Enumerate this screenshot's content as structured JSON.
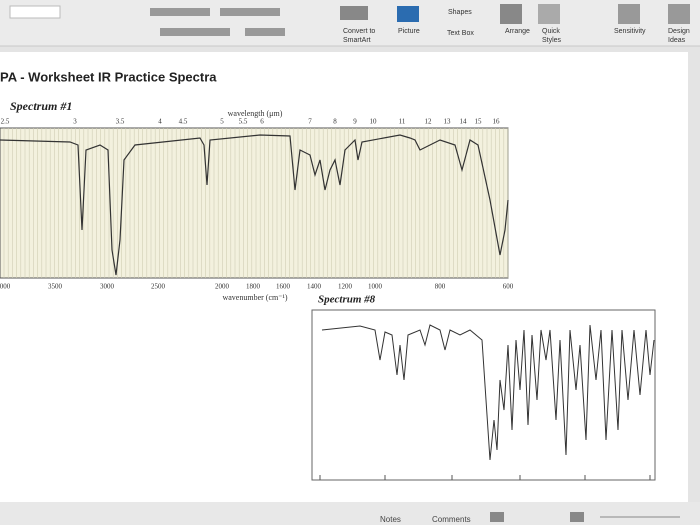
{
  "ribbon": {
    "items": [
      "Shapes",
      "Convert to",
      "SmartArt",
      "Picture",
      "Text Box",
      "Arrange",
      "Quick",
      "Styles",
      "Sensitivity",
      "Design",
      "Ideas"
    ]
  },
  "document": {
    "title": "PA - Worksheet IR Practice Spectra"
  },
  "spectrum1": {
    "label": "Spectrum #1",
    "wavelength_label": "wavelength (μm)",
    "wavelength_ticks": [
      "2.5",
      "3",
      "3.5",
      "4",
      "4.5",
      "5",
      "5.5",
      "6",
      "7",
      "8",
      "9",
      "10",
      "11",
      "12",
      "13",
      "14",
      "15",
      "16"
    ],
    "wavenumber_label": "wavenumber (cm⁻¹)",
    "wavenumber_ticks": [
      "000",
      "3500",
      "3000",
      "2500",
      "2000",
      "1800",
      "1600",
      "1400",
      "1200",
      "1000",
      "800",
      "600"
    ]
  },
  "spectrum8": {
    "label": "Spectrum #8"
  },
  "status": {
    "items": [
      "Notes",
      "Comments"
    ]
  }
}
